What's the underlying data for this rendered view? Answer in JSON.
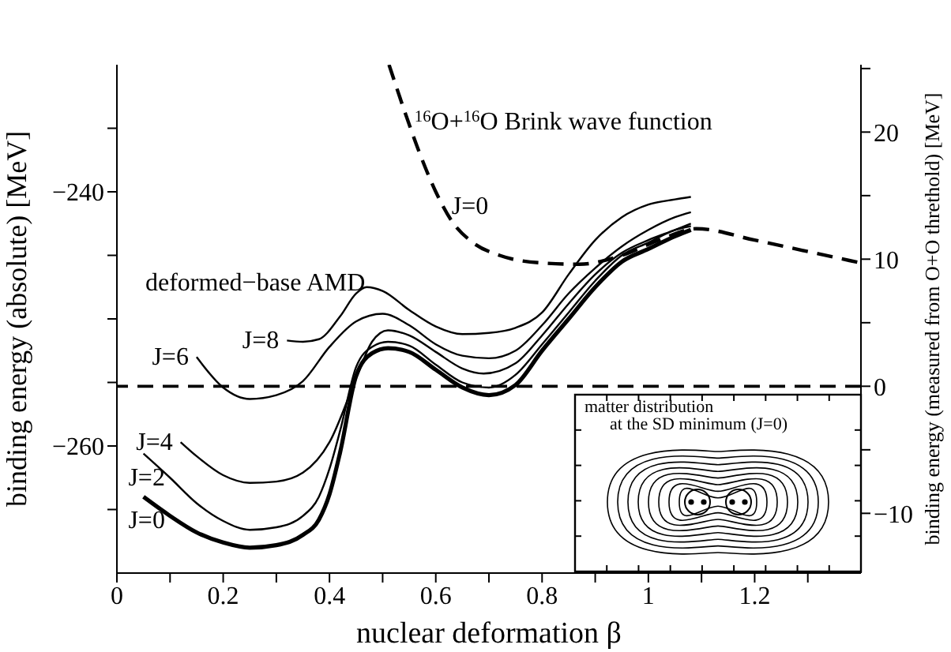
{
  "chart_data": {
    "type": "line",
    "xlabel": "nuclear deformation β",
    "ylabel": "binding energy (absolute) [MeV]",
    "y2label": "binding energy (measured from O+O threthold) [MeV]",
    "xlim": [
      0,
      1.4
    ],
    "xticks": [
      0,
      {
        "value": 0.1,
        "label": null
      },
      0.2,
      {
        "value": 0.3,
        "label": null
      },
      0.4,
      {
        "value": 0.5,
        "label": null
      },
      0.6,
      {
        "value": 0.7,
        "label": null
      },
      0.8,
      {
        "value": 0.9,
        "label": null
      },
      1,
      {
        "value": 1.1,
        "label": null
      },
      1.2,
      {
        "value": 1.3,
        "label": null
      }
    ],
    "ylim": [
      -270,
      -230
    ],
    "yticks": [
      {
        "value": -265,
        "label": null
      },
      -260,
      {
        "value": -255,
        "label": null
      },
      {
        "value": -250,
        "label": null
      },
      {
        "value": -245,
        "label": null
      },
      -240,
      {
        "value": -235,
        "label": null
      }
    ],
    "y2lim": [
      -14.7,
      25.3
    ],
    "y2ticks": [
      -10,
      {
        "value": -5,
        "label": null
      },
      0,
      {
        "value": 5,
        "label": null
      },
      10,
      {
        "value": 15,
        "label": null
      },
      20,
      {
        "value": 25,
        "label": null
      }
    ],
    "marker": "none",
    "series": [
      {
        "name": "J=0",
        "color": "#000000",
        "line_style": "solid",
        "x": [
          0.05,
          0.1,
          0.15,
          0.2,
          0.25,
          0.3,
          0.35,
          0.38,
          0.4,
          0.42,
          0.45,
          0.48,
          0.51,
          0.55,
          0.6,
          0.65,
          0.7,
          0.75,
          0.8,
          0.85,
          0.9,
          0.95,
          1.0,
          1.05,
          1.08
        ],
        "values": [
          -264,
          -265.5,
          -266.8,
          -267.6,
          -268,
          -267.8,
          -267,
          -265.8,
          -263.8,
          -260.5,
          -254.5,
          -252.7,
          -252.3,
          -252.6,
          -254,
          -255.4,
          -256,
          -255.2,
          -252.5,
          -250,
          -247.5,
          -245.5,
          -244.5,
          -243.5,
          -243
        ]
      },
      {
        "name": "J=2",
        "color": "#000000",
        "line_style": "solid",
        "x": [
          0.05,
          0.1,
          0.15,
          0.2,
          0.25,
          0.3,
          0.35,
          0.38,
          0.4,
          0.42,
          0.45,
          0.48,
          0.51,
          0.55,
          0.6,
          0.65,
          0.7,
          0.75,
          0.8,
          0.85,
          0.9,
          0.95,
          1.0,
          1.05,
          1.08
        ],
        "values": [
          -260.6,
          -262.5,
          -264.5,
          -265.9,
          -266.6,
          -266.4,
          -265.5,
          -264,
          -261.8,
          -258.8,
          -253.8,
          -252.2,
          -251.8,
          -252.1,
          -253.6,
          -255,
          -255.4,
          -254.4,
          -252,
          -249.5,
          -247,
          -245,
          -244,
          -243,
          -242.7
        ]
      },
      {
        "name": "J=4",
        "color": "#000000",
        "line_style": "solid",
        "x": [
          0.12,
          0.15,
          0.2,
          0.25,
          0.3,
          0.35,
          0.4,
          0.45,
          0.48,
          0.51,
          0.55,
          0.6,
          0.65,
          0.69,
          0.75,
          0.8,
          0.85,
          0.9,
          0.95,
          1.0,
          1.05,
          1.08
        ],
        "values": [
          -259.7,
          -260.8,
          -262.3,
          -262.9,
          -262.8,
          -262.1,
          -259.7,
          -254.7,
          -251.8,
          -250.9,
          -251.3,
          -252.6,
          -253.9,
          -254.3,
          -253.5,
          -251.3,
          -248.8,
          -246.5,
          -244.8,
          -243.8,
          -243,
          -242.5
        ]
      },
      {
        "name": "J=6",
        "color": "#000000",
        "line_style": "solid",
        "x": [
          0.15,
          0.2,
          0.25,
          0.3,
          0.35,
          0.4,
          0.45,
          0.5,
          0.55,
          0.6,
          0.65,
          0.7,
          0.75,
          0.8,
          0.85,
          0.9,
          0.95,
          1.0,
          1.05,
          1.08
        ],
        "values": [
          -253,
          -255.4,
          -256.3,
          -256,
          -254.9,
          -252.2,
          -250.2,
          -249.6,
          -250.5,
          -252,
          -252.9,
          -253.1,
          -252.5,
          -250.5,
          -248,
          -246,
          -244.3,
          -243,
          -242,
          -241.6
        ]
      },
      {
        "name": "J=8",
        "color": "#000000",
        "line_style": "solid",
        "x": [
          0.32,
          0.35,
          0.38,
          0.42,
          0.45,
          0.47,
          0.5,
          0.55,
          0.6,
          0.65,
          0.7,
          0.75,
          0.8,
          0.85,
          0.9,
          0.95,
          1.0,
          1.05,
          1.08
        ],
        "values": [
          -251.7,
          -251.8,
          -251.6,
          -249.8,
          -248,
          -247.5,
          -247.8,
          -249.3,
          -250.6,
          -251.2,
          -251.1,
          -250.7,
          -249.5,
          -246.5,
          -243.8,
          -242,
          -241,
          -240.6,
          -240.4
        ]
      },
      {
        "name": "J=0",
        "color": "#000000",
        "line_style": "dashed",
        "x": [
          0.512,
          0.54,
          0.57,
          0.6,
          0.63,
          0.67,
          0.72,
          0.8,
          0.87,
          0.95,
          1.02,
          1.09,
          1.2,
          1.3,
          1.4
        ],
        "values": [
          -230,
          -233.5,
          -237,
          -240,
          -242.3,
          -244,
          -245,
          -245.6,
          -245.7,
          -245,
          -243.8,
          -242.9,
          -243.8,
          -244.7,
          -245.6
        ]
      }
    ],
    "ref_lines": [
      {
        "axis": "y2",
        "value": 0,
        "color": "#000000",
        "line_style": "dashed"
      }
    ],
    "annotations": [
      "deformed−base AMD",
      {
        "text": "$^{16}$O+$^{16}$O Brink wave function",
        "x": 0.56,
        "y": -234.5
      },
      "matter distribution",
      "at the SD minimum (J=0)"
    ]
  }
}
